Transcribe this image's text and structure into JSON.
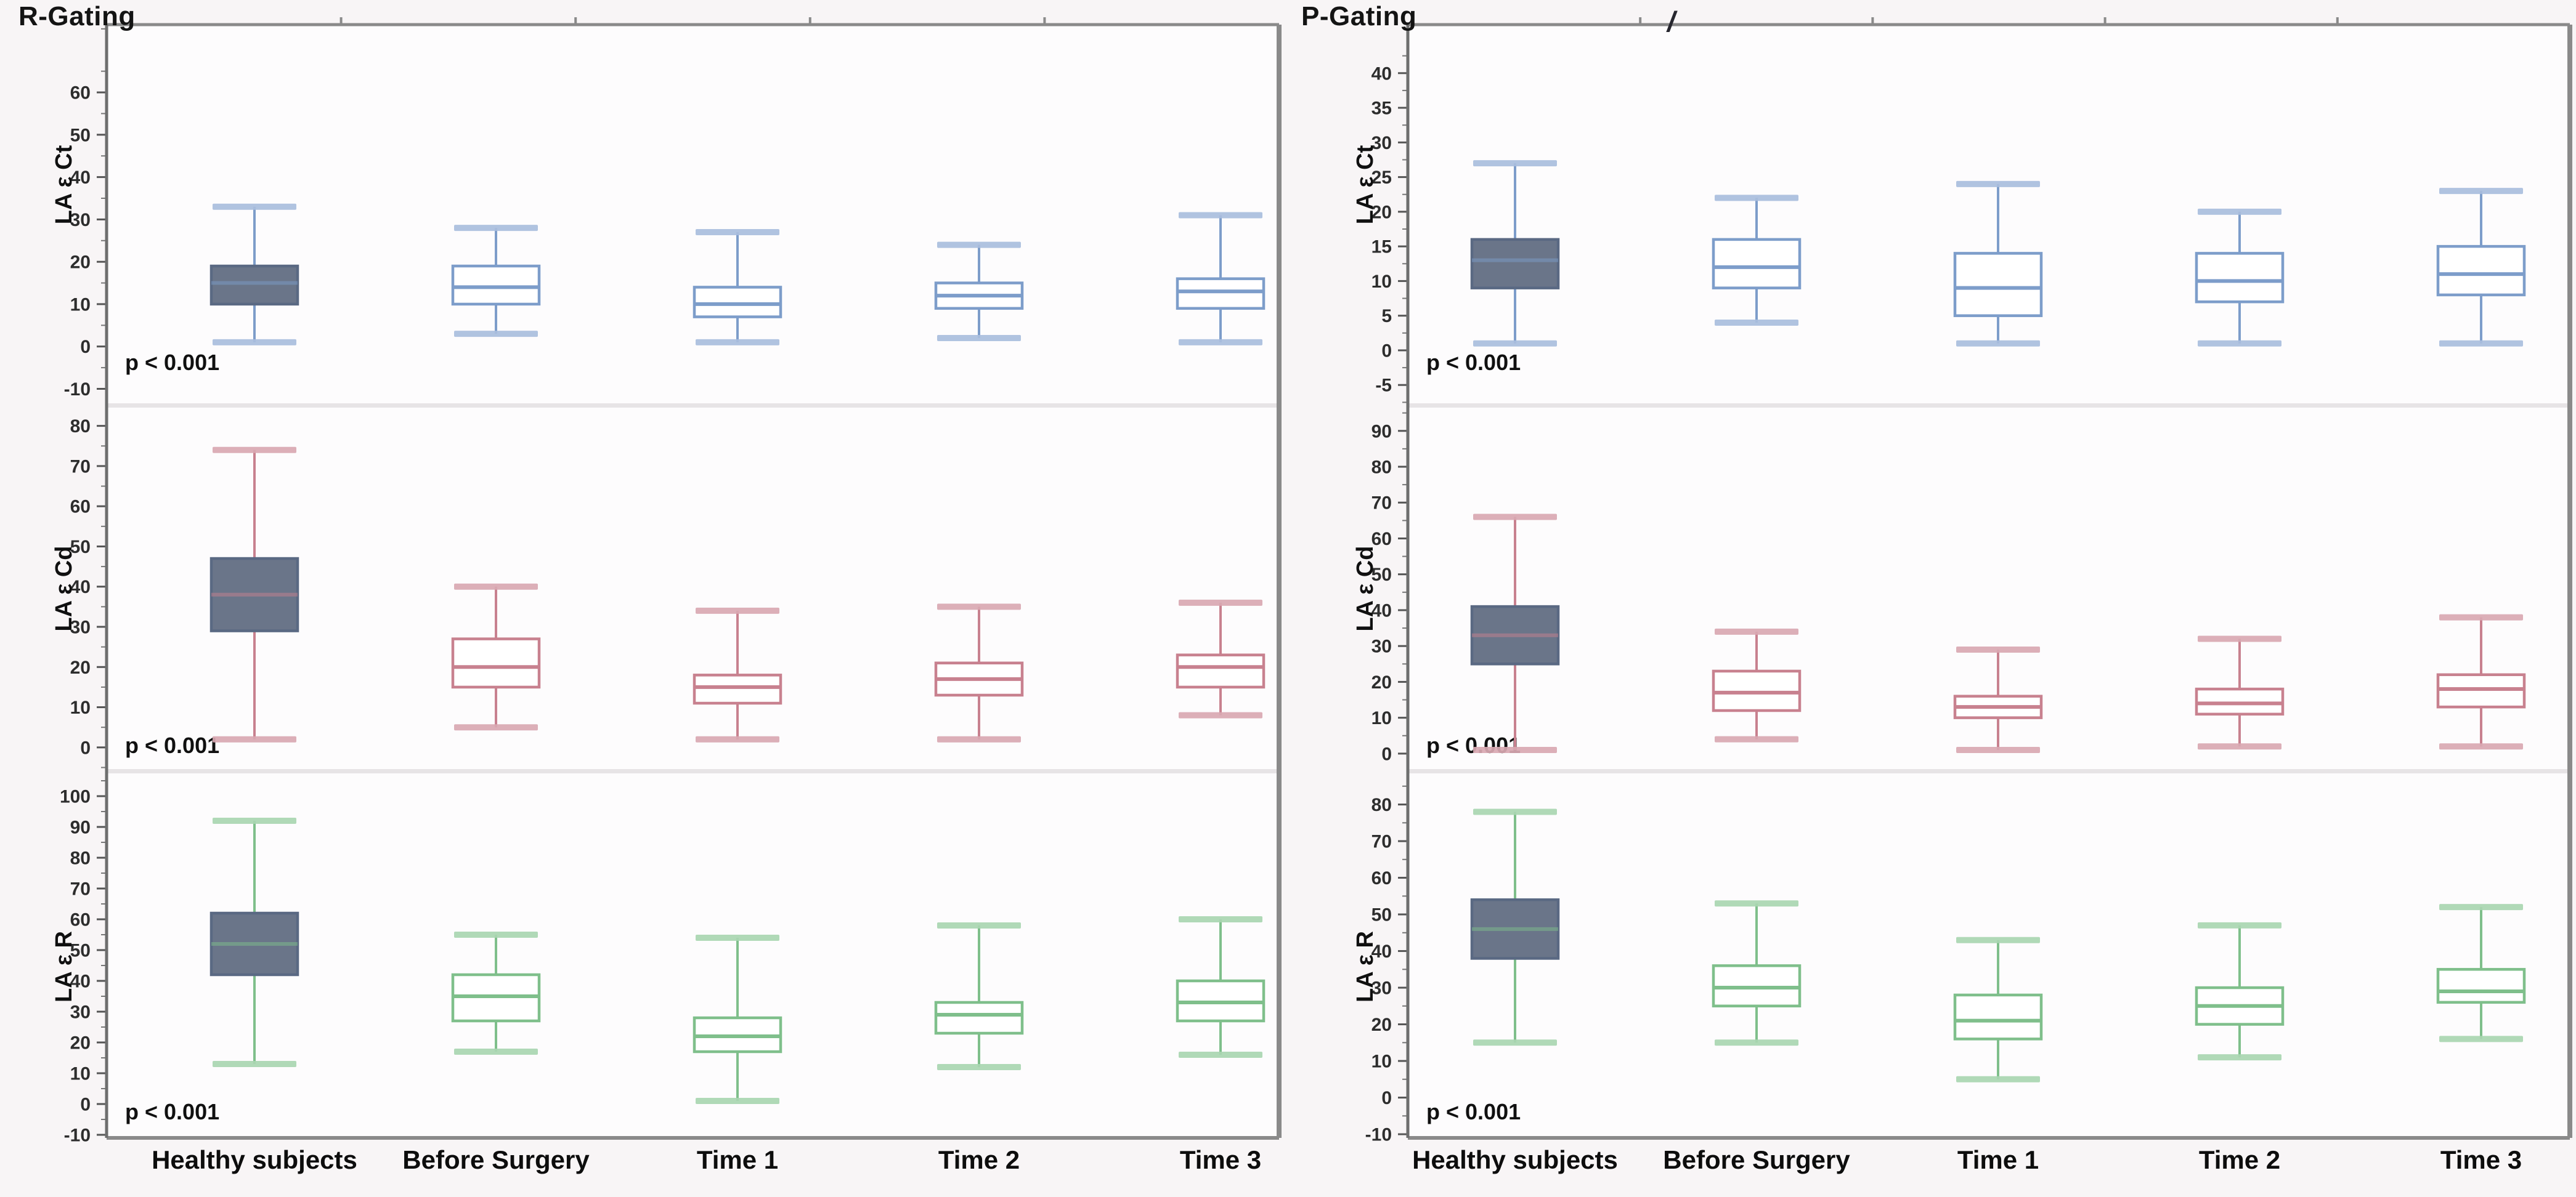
{
  "figure": {
    "background": "#f8f5f6",
    "plot_background": "#fdfcfd",
    "frame_color": "#8a8a8a",
    "separator_color": "#e7e4e6",
    "healthy_fill": "#6a7589",
    "healthy_stroke": "#5a6983"
  },
  "annotations": {
    "stray_mark": "/"
  },
  "chart_data": [
    {
      "type": "box",
      "panel": "R-Gating",
      "grid": false,
      "legend_position": "none",
      "categories": [
        "Healthy subjects",
        "Before Surgery",
        "Time 1",
        "Time 2",
        "Time 3"
      ],
      "rows": [
        {
          "ylabel": "LA ε Ct",
          "color": "#7d9dca",
          "cap_color": "#a9bedd",
          "ticks": [
            60,
            50,
            40,
            30,
            20,
            10,
            0,
            -10
          ],
          "ylim": [
            -14,
            76
          ],
          "p_label": "p < 0.001",
          "boxes": [
            {
              "category": "Healthy subjects",
              "filled": true,
              "low": 1,
              "q1": 10,
              "median": 15,
              "q3": 19,
              "high": 33
            },
            {
              "category": "Before Surgery",
              "filled": false,
              "low": 3,
              "q1": 10,
              "median": 14,
              "q3": 19,
              "high": 28
            },
            {
              "category": "Time 1",
              "filled": false,
              "low": 1,
              "q1": 7,
              "median": 10,
              "q3": 14,
              "high": 27
            },
            {
              "category": "Time 2",
              "filled": false,
              "low": 2,
              "q1": 9,
              "median": 12,
              "q3": 15,
              "high": 24
            },
            {
              "category": "Time 3",
              "filled": false,
              "low": 1,
              "q1": 9,
              "median": 13,
              "q3": 16,
              "high": 31
            }
          ]
        },
        {
          "ylabel": "LA ε Cd",
          "color": "#c8818f",
          "cap_color": "#d9a8b2",
          "ticks": [
            80,
            70,
            60,
            50,
            40,
            30,
            20,
            10,
            0
          ],
          "ylim": [
            -6,
            85
          ],
          "p_label": "p < 0.001",
          "boxes": [
            {
              "category": "Healthy subjects",
              "filled": true,
              "low": 2,
              "q1": 29,
              "median": 38,
              "q3": 47,
              "high": 74
            },
            {
              "category": "Before Surgery",
              "filled": false,
              "low": 5,
              "q1": 15,
              "median": 20,
              "q3": 27,
              "high": 40
            },
            {
              "category": "Time 1",
              "filled": false,
              "low": 2,
              "q1": 11,
              "median": 15,
              "q3": 18,
              "high": 34
            },
            {
              "category": "Time 2",
              "filled": false,
              "low": 2,
              "q1": 13,
              "median": 17,
              "q3": 21,
              "high": 35
            },
            {
              "category": "Time 3",
              "filled": false,
              "low": 8,
              "q1": 15,
              "median": 20,
              "q3": 23,
              "high": 36
            }
          ]
        },
        {
          "ylabel": "LA ε R",
          "color": "#7fbf8b",
          "cap_color": "#a9d6b1",
          "ticks": [
            100,
            90,
            80,
            70,
            60,
            50,
            40,
            30,
            20,
            10,
            0,
            -10
          ],
          "ylim": [
            -11,
            108
          ],
          "p_label": "p < 0.001",
          "boxes": [
            {
              "category": "Healthy subjects",
              "filled": true,
              "low": 13,
              "q1": 42,
              "median": 52,
              "q3": 62,
              "high": 92
            },
            {
              "category": "Before Surgery",
              "filled": false,
              "low": 17,
              "q1": 27,
              "median": 35,
              "q3": 42,
              "high": 55
            },
            {
              "category": "Time 1",
              "filled": false,
              "low": 1,
              "q1": 17,
              "median": 22,
              "q3": 28,
              "high": 54
            },
            {
              "category": "Time 2",
              "filled": false,
              "low": 12,
              "q1": 23,
              "median": 29,
              "q3": 33,
              "high": 58
            },
            {
              "category": "Time 3",
              "filled": false,
              "low": 16,
              "q1": 27,
              "median": 33,
              "q3": 40,
              "high": 60
            }
          ]
        }
      ]
    },
    {
      "type": "box",
      "panel": "P-Gating",
      "grid": false,
      "legend_position": "none",
      "categories": [
        "Healthy subjects",
        "Before Surgery",
        "Time 1",
        "Time 2",
        "Time 3"
      ],
      "rows": [
        {
          "ylabel": "LA ε Ct",
          "color": "#7d9dca",
          "cap_color": "#a9bedd",
          "ticks": [
            40,
            35,
            30,
            25,
            20,
            15,
            10,
            5,
            0,
            -5
          ],
          "ylim": [
            -8,
            47
          ],
          "p_label": "p < 0.001",
          "boxes": [
            {
              "category": "Healthy subjects",
              "filled": true,
              "low": 1,
              "q1": 9,
              "median": 13,
              "q3": 16,
              "high": 27
            },
            {
              "category": "Before Surgery",
              "filled": false,
              "low": 4,
              "q1": 9,
              "median": 12,
              "q3": 16,
              "high": 22
            },
            {
              "category": "Time 1",
              "filled": false,
              "low": 1,
              "q1": 5,
              "median": 9,
              "q3": 14,
              "high": 24
            },
            {
              "category": "Time 2",
              "filled": false,
              "low": 1,
              "q1": 7,
              "median": 10,
              "q3": 14,
              "high": 20
            },
            {
              "category": "Time 3",
              "filled": false,
              "low": 1,
              "q1": 8,
              "median": 11,
              "q3": 15,
              "high": 23
            }
          ]
        },
        {
          "ylabel": "LA ε Cd",
          "color": "#c8818f",
          "cap_color": "#d9a8b2",
          "ticks": [
            90,
            80,
            70,
            60,
            50,
            40,
            30,
            20,
            10,
            0
          ],
          "ylim": [
            -5,
            97
          ],
          "p_label": "p < 0.001",
          "boxes": [
            {
              "category": "Healthy subjects",
              "filled": true,
              "low": 1,
              "q1": 25,
              "median": 33,
              "q3": 41,
              "high": 66
            },
            {
              "category": "Before Surgery",
              "filled": false,
              "low": 4,
              "q1": 12,
              "median": 17,
              "q3": 23,
              "high": 34
            },
            {
              "category": "Time 1",
              "filled": false,
              "low": 1,
              "q1": 10,
              "median": 13,
              "q3": 16,
              "high": 29
            },
            {
              "category": "Time 2",
              "filled": false,
              "low": 2,
              "q1": 11,
              "median": 14,
              "q3": 18,
              "high": 32
            },
            {
              "category": "Time 3",
              "filled": false,
              "low": 2,
              "q1": 13,
              "median": 18,
              "q3": 22,
              "high": 38
            }
          ]
        },
        {
          "ylabel": "LA ε R",
          "color": "#7fbf8b",
          "cap_color": "#a9d6b1",
          "ticks": [
            80,
            70,
            60,
            50,
            40,
            30,
            20,
            10,
            0,
            -10
          ],
          "ylim": [
            -11,
            89
          ],
          "p_label": "p < 0.001",
          "boxes": [
            {
              "category": "Healthy subjects",
              "filled": true,
              "low": 15,
              "q1": 38,
              "median": 46,
              "q3": 54,
              "high": 78
            },
            {
              "category": "Before Surgery",
              "filled": false,
              "low": 15,
              "q1": 25,
              "median": 30,
              "q3": 36,
              "high": 53
            },
            {
              "category": "Time 1",
              "filled": false,
              "low": 5,
              "q1": 16,
              "median": 21,
              "q3": 28,
              "high": 43
            },
            {
              "category": "Time 2",
              "filled": false,
              "low": 11,
              "q1": 20,
              "median": 25,
              "q3": 30,
              "high": 47
            },
            {
              "category": "Time 3",
              "filled": false,
              "low": 16,
              "q1": 26,
              "median": 29,
              "q3": 35,
              "high": 52
            }
          ]
        }
      ]
    }
  ]
}
